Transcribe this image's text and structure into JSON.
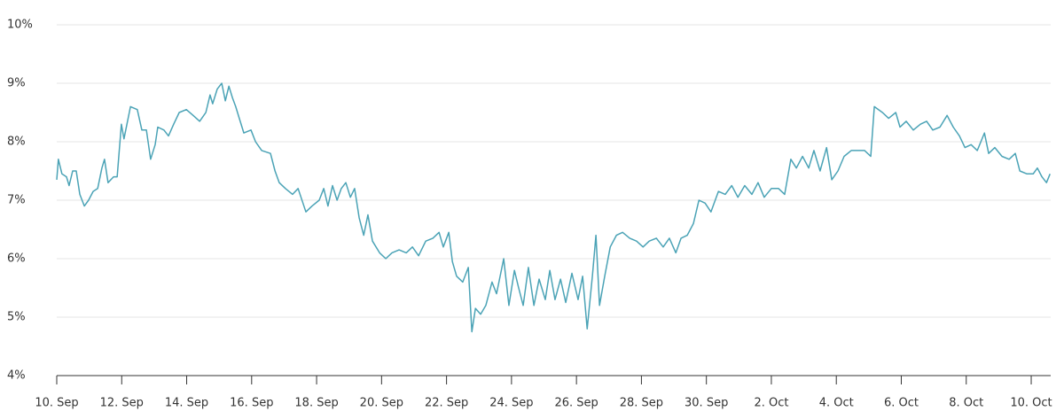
{
  "chart_data": {
    "type": "line",
    "x": [
      0,
      0.05,
      0.16,
      0.3,
      0.38,
      0.49,
      0.6,
      0.71,
      0.85,
      0.98,
      1.12,
      1.26,
      1.39,
      1.47,
      1.58,
      1.75,
      1.86,
      1.99,
      2.07,
      2.27,
      2.48,
      2.62,
      2.76,
      2.89,
      3.03,
      3.11,
      3.3,
      3.44,
      3.6,
      3.77,
      3.99,
      4.2,
      4.4,
      4.59,
      4.72,
      4.8,
      4.94,
      5.08,
      5.19,
      5.3,
      5.41,
      5.51,
      5.62,
      5.76,
      5.98,
      6.12,
      6.31,
      6.58,
      6.72,
      6.85,
      7.04,
      7.26,
      7.43,
      7.67,
      7.86,
      8.08,
      8.22,
      8.35,
      8.49,
      8.63,
      8.76,
      8.9,
      9.04,
      9.17,
      9.31,
      9.45,
      9.58,
      9.72,
      9.94,
      10.13,
      10.32,
      10.54,
      10.76,
      10.95,
      11.14,
      11.36,
      11.58,
      11.77,
      11.9,
      12.07,
      12.18,
      12.31,
      12.5,
      12.67,
      12.78,
      12.89,
      13.05,
      13.21,
      13.4,
      13.54,
      13.76,
      13.92,
      14.09,
      14.22,
      14.36,
      14.52,
      14.69,
      14.85,
      15.04,
      15.18,
      15.34,
      15.51,
      15.67,
      15.86,
      16.05,
      16.19,
      16.33,
      16.49,
      16.6,
      16.71,
      16.87,
      17.04,
      17.23,
      17.42,
      17.64,
      17.85,
      18.05,
      18.24,
      18.46,
      18.67,
      18.86,
      19.06,
      19.22,
      19.41,
      19.6,
      19.77,
      19.96,
      20.14,
      20.37,
      20.58,
      20.78,
      20.97,
      21.18,
      21.4,
      21.59,
      21.78,
      22.0,
      22.22,
      22.41,
      22.6,
      22.77,
      22.96,
      23.15,
      23.31,
      23.5,
      23.7,
      23.86,
      24.05,
      24.24,
      24.46,
      24.68,
      24.87,
      25.06,
      25.17,
      25.42,
      25.61,
      25.83,
      25.96,
      26.15,
      26.37,
      26.59,
      26.78,
      26.97,
      27.19,
      27.41,
      27.6,
      27.79,
      27.96,
      28.15,
      28.34,
      28.56,
      28.69,
      28.88,
      29.1,
      29.32,
      29.51,
      29.65,
      29.87,
      30.06,
      30.19,
      30.33,
      30.47,
      30.58
    ],
    "series": [
      {
        "color": "#4ba3b6",
        "values": [
          7.35,
          7.7,
          7.45,
          7.4,
          7.25,
          7.5,
          7.5,
          7.1,
          6.9,
          7.0,
          7.15,
          7.2,
          7.55,
          7.7,
          7.3,
          7.4,
          7.4,
          8.3,
          8.05,
          8.6,
          8.55,
          8.2,
          8.2,
          7.7,
          7.95,
          8.25,
          8.2,
          8.1,
          8.3,
          8.5,
          8.55,
          8.45,
          8.35,
          8.5,
          8.8,
          8.65,
          8.9,
          9.0,
          8.7,
          8.95,
          8.75,
          8.6,
          8.4,
          8.15,
          8.2,
          8.0,
          7.85,
          7.8,
          7.5,
          7.3,
          7.2,
          7.1,
          7.2,
          6.8,
          6.9,
          7.0,
          7.2,
          6.9,
          7.25,
          7.0,
          7.2,
          7.3,
          7.05,
          7.2,
          6.7,
          6.4,
          6.75,
          6.3,
          6.1,
          6.0,
          6.1,
          6.15,
          6.1,
          6.2,
          6.05,
          6.3,
          6.35,
          6.45,
          6.2,
          6.45,
          5.95,
          5.7,
          5.6,
          5.85,
          4.75,
          5.15,
          5.05,
          5.2,
          5.6,
          5.4,
          6.0,
          5.2,
          5.8,
          5.5,
          5.2,
          5.85,
          5.2,
          5.65,
          5.3,
          5.8,
          5.3,
          5.65,
          5.25,
          5.75,
          5.3,
          5.7,
          4.8,
          5.7,
          6.4,
          5.2,
          5.7,
          6.2,
          6.4,
          6.45,
          6.35,
          6.3,
          6.2,
          6.3,
          6.35,
          6.2,
          6.35,
          6.1,
          6.35,
          6.4,
          6.6,
          7.0,
          6.95,
          6.8,
          7.15,
          7.1,
          7.25,
          7.05,
          7.25,
          7.1,
          7.3,
          7.05,
          7.2,
          7.2,
          7.1,
          7.7,
          7.55,
          7.75,
          7.55,
          7.85,
          7.5,
          7.9,
          7.35,
          7.5,
          7.75,
          7.85,
          7.85,
          7.85,
          7.75,
          8.6,
          8.5,
          8.4,
          8.5,
          8.25,
          8.35,
          8.2,
          8.3,
          8.35,
          8.2,
          8.25,
          8.45,
          8.25,
          8.1,
          7.9,
          7.95,
          7.85,
          8.15,
          7.8,
          7.9,
          7.75,
          7.7,
          7.8,
          7.5,
          7.45,
          7.45,
          7.55,
          7.4,
          7.3,
          7.45
        ]
      }
    ],
    "xlim": [
      0,
      30.6
    ],
    "xticks": [
      {
        "value": 0,
        "label": "10. Sep"
      },
      {
        "value": 2,
        "label": "12. Sep"
      },
      {
        "value": 4,
        "label": "14. Sep"
      },
      {
        "value": 6,
        "label": "16. Sep"
      },
      {
        "value": 8,
        "label": "18. Sep"
      },
      {
        "value": 10,
        "label": "20. Sep"
      },
      {
        "value": 12,
        "label": "22. Sep"
      },
      {
        "value": 14,
        "label": "24. Sep"
      },
      {
        "value": 16,
        "label": "26. Sep"
      },
      {
        "value": 18,
        "label": "28. Sep"
      },
      {
        "value": 20,
        "label": "30. Sep"
      },
      {
        "value": 22,
        "label": "2. Oct"
      },
      {
        "value": 24,
        "label": "4. Oct"
      },
      {
        "value": 26,
        "label": "6. Oct"
      },
      {
        "value": 28,
        "label": "8. Oct"
      },
      {
        "value": 30,
        "label": "10. Oct"
      }
    ],
    "ylim": [
      4,
      10
    ],
    "yticks": [
      {
        "value": 4,
        "label": "4%"
      },
      {
        "value": 5,
        "label": "5%"
      },
      {
        "value": 6,
        "label": "6%"
      },
      {
        "value": 7,
        "label": "7%"
      },
      {
        "value": 8,
        "label": "8%"
      },
      {
        "value": 9,
        "label": "9%"
      },
      {
        "value": 10,
        "label": "10%"
      }
    ],
    "grid": true
  }
}
